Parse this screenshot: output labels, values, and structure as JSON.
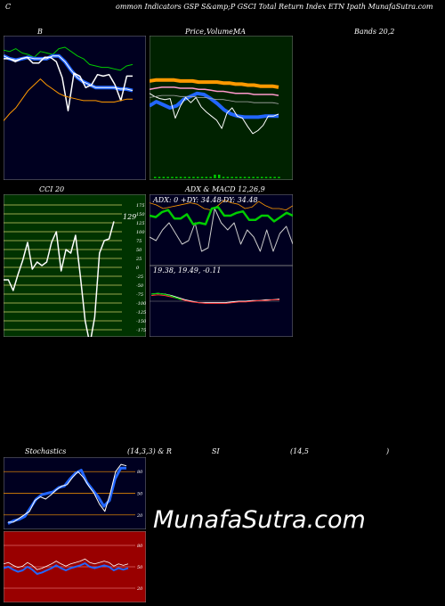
{
  "header": {
    "left_text": "C",
    "main_text": "ommon  Indicators GSP S&amp;P GSCI Total Return  Index ETN  Ipath MunafaSutra.com"
  },
  "titles": {
    "bollinger": "B",
    "price_ma_a": "Price,",
    "price_ma_b": "Volume,",
    "price_ma_c": "MA",
    "bands": "Bands 20,2",
    "cci": "CCI 20",
    "adx_macd": "ADX  & MACD 12,26,9",
    "stoch_a": "Stochastics",
    "stoch_b": "(14,3,3) & R",
    "stoch_c": "SI",
    "stoch_d": "(14,5",
    "stoch_e": ")"
  },
  "watermark": "MunafaSutra.com",
  "colors": {
    "panel_dark": "#000020",
    "panel_green": "#002200",
    "panel_cci": "#003300",
    "panel_rsi": "#990000",
    "blue": "#2266ff",
    "orange": "#ff9900",
    "green": "#00cc00",
    "white": "#ffffff"
  },
  "chart_data": [
    {
      "type": "line",
      "panel": "bollinger",
      "series": [
        {
          "values": [
            90,
            89,
            91,
            88,
            87,
            85,
            89,
            88,
            87,
            91,
            92,
            89,
            86,
            84,
            80,
            79,
            78,
            78,
            77,
            76,
            79,
            80
          ]
        },
        {
          "values": [
            86,
            84,
            83,
            84,
            85,
            84,
            84,
            84,
            86,
            86,
            82,
            76,
            71,
            68,
            66,
            64,
            64,
            64,
            64,
            63,
            63,
            62
          ]
        },
        {
          "values": [
            84,
            84,
            82,
            84,
            85,
            81,
            81,
            85,
            85,
            82,
            71,
            48,
            74,
            72,
            64,
            66,
            73,
            72,
            73,
            66,
            55,
            72,
            72
          ]
        },
        {
          "values": [
            41,
            46,
            50,
            56,
            62,
            66,
            70,
            66,
            63,
            60,
            58,
            57,
            56,
            55,
            55,
            55,
            54,
            54,
            54,
            55,
            56,
            56
          ]
        }
      ]
    },
    {
      "type": "line",
      "panel": "price_ma",
      "series": [
        {
          "values": [
            96,
            97,
            97,
            97,
            97,
            96,
            96,
            96,
            95,
            95,
            95,
            95,
            94,
            94,
            93,
            93,
            92,
            92,
            91,
            91,
            91,
            90
          ]
        },
        {
          "values": [
            88,
            89,
            90,
            90,
            90,
            89,
            89,
            89,
            88,
            88,
            87,
            86,
            86,
            85,
            84,
            84,
            84,
            83,
            83,
            83,
            83,
            82
          ]
        },
        {
          "values": [
            72,
            76,
            73,
            70,
            72,
            78,
            81,
            84,
            83,
            79,
            74,
            68,
            64,
            62,
            61,
            61,
            61,
            62,
            62,
            62
          ]
        },
        {
          "values": [
            84,
            81,
            79,
            78,
            79,
            60,
            72,
            80,
            75,
            80,
            71,
            66,
            62,
            58,
            50,
            65,
            70,
            62,
            60,
            52,
            45,
            48,
            53,
            62,
            62,
            64
          ]
        }
      ]
    },
    {
      "type": "line",
      "panel": "cci",
      "y_ticks": [
        175,
        150,
        125,
        100,
        75,
        50,
        25,
        0,
        -25,
        -50,
        -75,
        -100,
        -125,
        -150,
        -175
      ],
      "last_label": "129",
      "values": [
        -35,
        -35,
        -65,
        -20,
        20,
        70,
        -5,
        15,
        5,
        15,
        70,
        100,
        -10,
        50,
        40,
        90,
        -25,
        -150,
        -215,
        -140,
        40,
        75,
        80,
        129
      ]
    },
    {
      "type": "line",
      "panel": "adx",
      "labels": {
        "adx": "ADX: 0",
        "plus_di": "+DY: 34.48",
        "minus_di": "-DY: 34.48"
      },
      "series": [
        {
          "values": [
            70,
            68,
            75,
            78,
            66,
            66,
            72,
            58,
            60,
            58,
            80,
            82,
            70,
            70,
            74,
            76,
            64,
            64,
            70,
            70,
            62,
            68,
            74,
            70
          ]
        },
        {
          "values": [
            88,
            85,
            80,
            82,
            84,
            86,
            88,
            86,
            80,
            78,
            84,
            92,
            88,
            86,
            80,
            82,
            90,
            84,
            80,
            80,
            78,
            84
          ]
        },
        {
          "values": [
            40,
            35,
            50,
            60,
            45,
            30,
            35,
            60,
            20,
            25,
            80,
            60,
            50,
            60,
            30,
            50,
            40,
            20,
            50,
            20,
            45,
            55,
            30
          ]
        }
      ]
    },
    {
      "type": "line",
      "panel": "macd",
      "labels": {
        "text": "19.38,  19.49,  -0.11"
      },
      "series": [
        {
          "values": [
            60,
            61,
            60,
            58,
            55,
            52,
            50,
            48,
            48,
            48,
            48,
            48,
            49,
            50,
            50,
            51,
            51,
            52,
            52,
            53
          ]
        },
        {
          "values": [
            58,
            59,
            58,
            56,
            54,
            51,
            49,
            48,
            47,
            47,
            47,
            47,
            48,
            49,
            49,
            50,
            51,
            51,
            52,
            52
          ]
        }
      ]
    },
    {
      "type": "line",
      "panel": "stochastics",
      "y_ticks": [
        80,
        50,
        20
      ],
      "series": [
        {
          "values": [
            10,
            10,
            15,
            20,
            25,
            40,
            45,
            42,
            48,
            55,
            60,
            62,
            72,
            80,
            72,
            60,
            50,
            35,
            25,
            50,
            80,
            90,
            88
          ]
        },
        {
          "values": [
            8,
            12,
            14,
            18,
            30,
            42,
            48,
            50,
            52,
            58,
            60,
            70,
            78,
            82,
            65,
            55,
            45,
            32,
            40,
            70,
            85,
            85
          ]
        }
      ]
    },
    {
      "type": "line",
      "panel": "rsi",
      "y_ticks": [
        80,
        50,
        20
      ],
      "values": [
        48,
        50,
        46,
        43,
        45,
        50,
        46,
        40,
        42,
        45,
        48,
        52,
        48,
        45,
        48,
        50,
        52,
        55,
        50,
        48,
        50,
        52,
        50,
        45,
        48,
        46,
        48
      ]
    }
  ]
}
